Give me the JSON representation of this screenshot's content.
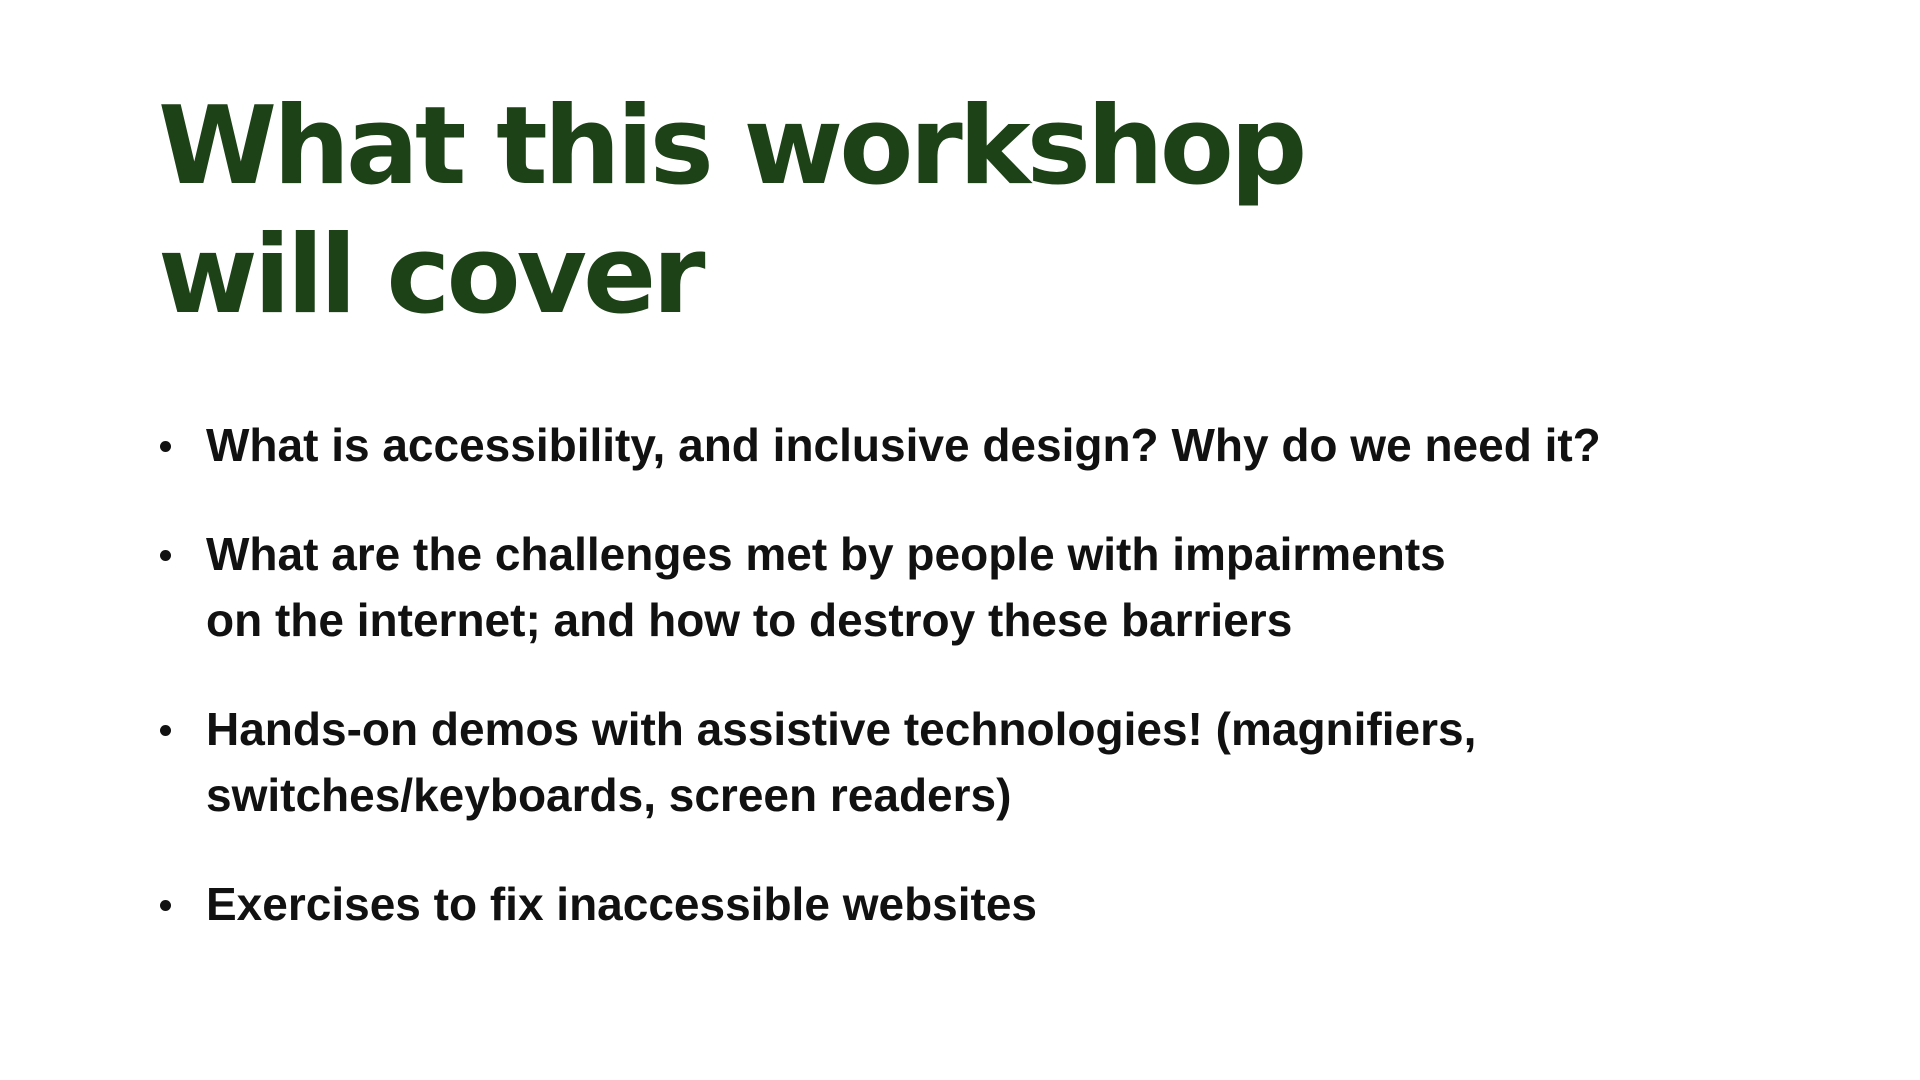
{
  "slide": {
    "title_lines": [
      "What this workshop",
      "will cover"
    ],
    "bullets": [
      {
        "lines": [
          "What is accessibility, and inclusive design? Why do we need it?"
        ]
      },
      {
        "lines": [
          "What are the challenges met by people with impairments",
          "on the internet; and how to destroy these barriers"
        ]
      },
      {
        "lines": [
          "Hands-on demos with assistive technologies! (magnifiers,",
          "switches/keyboards, screen readers)"
        ]
      },
      {
        "lines": [
          "Exercises to fix inaccessible websites"
        ]
      }
    ]
  },
  "colors": {
    "title": "#1e4218",
    "body_text": "#111111",
    "background": "#ffffff"
  }
}
